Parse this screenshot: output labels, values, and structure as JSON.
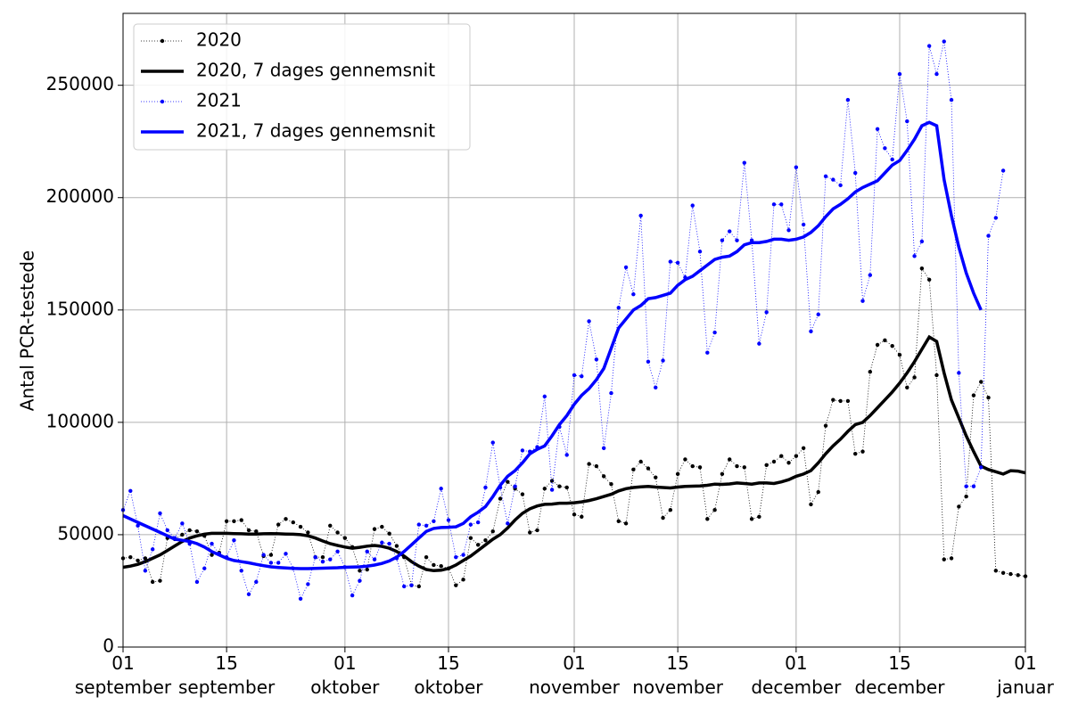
{
  "chart_data": {
    "type": "line",
    "y_label": "Antal PCR-testede",
    "x": [
      0,
      1,
      2,
      3,
      4,
      5,
      6,
      7,
      8,
      9,
      10,
      11,
      12,
      13,
      14,
      15,
      16,
      17,
      18,
      19,
      20,
      21,
      22,
      23,
      24,
      25,
      26,
      27,
      28,
      29,
      30,
      31,
      32,
      33,
      34,
      35,
      36,
      37,
      38,
      39,
      40,
      41,
      42,
      43,
      44,
      45,
      46,
      47,
      48,
      49,
      50,
      51,
      52,
      53,
      54,
      55,
      56,
      57,
      58,
      59,
      60,
      61,
      62,
      63,
      64,
      65,
      66,
      67,
      68,
      69,
      70,
      71,
      72,
      73,
      74,
      75,
      76,
      77,
      78,
      79,
      80,
      81,
      82,
      83,
      84,
      85,
      86,
      87,
      88,
      89,
      90,
      91,
      92,
      93,
      94,
      95,
      96,
      97,
      98,
      99,
      100,
      101,
      102,
      103,
      104,
      105,
      106,
      107,
      108,
      109,
      110,
      111,
      112,
      113,
      114,
      115,
      116,
      117,
      118,
      119,
      120,
      121,
      122
    ],
    "xlim": [
      0,
      122
    ],
    "xticks": [
      {
        "value": 0,
        "label": "01\nseptember"
      },
      {
        "value": 14,
        "label": "15\nseptember"
      },
      {
        "value": 30,
        "label": "01\noktober"
      },
      {
        "value": 44,
        "label": "15\noktober"
      },
      {
        "value": 61,
        "label": "01\nnovember"
      },
      {
        "value": 75,
        "label": "15\nnovember"
      },
      {
        "value": 91,
        "label": "01\ndecember"
      },
      {
        "value": 105,
        "label": "15\ndecember"
      },
      {
        "value": 122,
        "label": "01\njanuar"
      }
    ],
    "ylim": [
      0,
      282000
    ],
    "yticks": [
      0,
      50000,
      100000,
      150000,
      200000,
      250000
    ],
    "grid": true,
    "legend": "upper-left",
    "series": [
      {
        "name": "2020",
        "color": "#000000",
        "line_style": "dotted",
        "marker": true,
        "values": [
          39500,
          40000,
          38500,
          39500,
          29000,
          29500,
          48500,
          48000,
          50000,
          52000,
          51500,
          49500,
          41000,
          42000,
          56000,
          56000,
          56500,
          52000,
          51500,
          40500,
          41000,
          54500,
          57000,
          55500,
          53500,
          51000,
          40000,
          40000,
          54000,
          51000,
          48500,
          44500,
          34000,
          34500,
          52500,
          53500,
          50500,
          45000,
          40000,
          27500,
          27000,
          40000,
          36500,
          36000,
          35000,
          27500,
          30000,
          48500,
          45500,
          47500,
          51500,
          66000,
          73500,
          70500,
          68000,
          51000,
          52000,
          70500,
          74000,
          71500,
          71000,
          59000,
          58000,
          81500,
          80500,
          76000,
          72500,
          56000,
          55000,
          79000,
          82500,
          79500,
          75500,
          57500,
          61000,
          77000,
          83500,
          80500,
          80000,
          57000,
          61000,
          77000,
          83500,
          80500,
          80000,
          57000,
          58000,
          81000,
          82500,
          85000,
          82000,
          85000,
          88500,
          63500,
          69000,
          98500,
          110000,
          109500,
          109500,
          86000,
          87000,
          122500,
          134500,
          136500,
          134000,
          130000,
          115500,
          120000,
          168500,
          163500,
          121000,
          39000,
          39500,
          62500,
          67000,
          112000,
          118000,
          111000,
          34000,
          33000,
          32500,
          32000,
          31500
        ]
      },
      {
        "name": "2020, 7 dages gennemsnit",
        "color": "#000000",
        "line_style": "solid",
        "marker": false,
        "values": [
          35500,
          36000,
          36800,
          38000,
          39500,
          41000,
          43000,
          45000,
          47000,
          48500,
          49500,
          50200,
          50600,
          50600,
          50600,
          50500,
          50400,
          50300,
          50300,
          50400,
          50500,
          50400,
          50300,
          50200,
          50000,
          49500,
          48500,
          47200,
          46000,
          45200,
          44500,
          44000,
          44400,
          44900,
          45200,
          44800,
          44000,
          42500,
          40500,
          38000,
          36000,
          34500,
          34000,
          34200,
          35000,
          36500,
          38500,
          40500,
          43000,
          45500,
          48000,
          50000,
          53000,
          56500,
          59500,
          61500,
          62800,
          63500,
          63600,
          64000,
          64000,
          64200,
          64600,
          65200,
          66000,
          67000,
          68000,
          69500,
          70500,
          71000,
          71300,
          71500,
          71200,
          71000,
          70800,
          71200,
          71500,
          71600,
          71700,
          72000,
          72500,
          72400,
          72600,
          73000,
          72800,
          72500,
          73000,
          73000,
          72800,
          73500,
          74500,
          76000,
          77000,
          78500,
          82000,
          86000,
          89500,
          92500,
          96000,
          99000,
          100000,
          103000,
          106500,
          110000,
          113500,
          117500,
          122000,
          127000,
          132500,
          138000,
          136000,
          122000,
          110000,
          102000,
          94000,
          87000,
          80500,
          79000,
          78000,
          77000,
          78500,
          78300,
          77500
        ]
      },
      {
        "name": "2021",
        "color": "#0000ff",
        "line_style": "dotted",
        "marker": true,
        "values": [
          61000,
          69500,
          54000,
          34000,
          43500,
          59500,
          52000,
          48500,
          55000,
          46000,
          29000,
          35000,
          46000,
          41500,
          40000,
          47500,
          34000,
          23500,
          29000,
          41000,
          37500,
          37500,
          41500,
          35000,
          21500,
          28000,
          40000,
          38000,
          39000,
          42500,
          35500,
          23000,
          29500,
          42500,
          39000,
          46500,
          46000,
          39500,
          27000,
          27500,
          54500,
          54000,
          56000,
          70500,
          56500,
          40000,
          41000,
          54500,
          55500,
          71000,
          91000,
          71000,
          55000,
          71500,
          87500,
          87000,
          89000,
          111500,
          70000,
          98000,
          85500,
          121000,
          120500,
          145000,
          128000,
          88500,
          113000,
          151000,
          169000,
          157000,
          192000,
          127000,
          115500,
          127500,
          171500,
          171000,
          164500,
          196500,
          176000,
          131000,
          140000,
          181000,
          185000,
          181000,
          215500,
          181000,
          135000,
          149000,
          197000,
          197000,
          185500,
          213500,
          188000,
          140500,
          148000,
          209500,
          208000,
          205500,
          243500,
          211000,
          154000,
          165500,
          230500,
          222000,
          217000,
          255000,
          234000,
          174000,
          180500,
          267500,
          255000,
          269500,
          243500,
          122000,
          71500,
          71500,
          80000,
          183000,
          191000,
          212000,
          null,
          null,
          null
        ]
      },
      {
        "name": "2021, 7 dages gennemsnit",
        "color": "#0000ff",
        "line_style": "solid",
        "marker": false,
        "values": [
          58500,
          57000,
          55500,
          54000,
          52500,
          51000,
          49500,
          48000,
          47500,
          47000,
          46000,
          44500,
          42500,
          41000,
          39500,
          38500,
          38000,
          37500,
          36800,
          36200,
          35700,
          35400,
          35200,
          35000,
          34900,
          34900,
          35000,
          35100,
          35200,
          35300,
          35500,
          35600,
          35700,
          36000,
          36500,
          37200,
          38300,
          40000,
          42500,
          45500,
          48500,
          51500,
          52800,
          53200,
          53300,
          53500,
          55000,
          58000,
          60000,
          62500,
          67000,
          72000,
          76000,
          78500,
          82000,
          86000,
          88000,
          89500,
          94000,
          99000,
          103000,
          108000,
          112000,
          115000,
          119000,
          124000,
          133000,
          142000,
          146000,
          150000,
          152000,
          155000,
          155500,
          156500,
          157500,
          161000,
          163500,
          165000,
          167500,
          170000,
          172500,
          173500,
          174000,
          176000,
          179000,
          180000,
          180000,
          180500,
          181500,
          181500,
          181000,
          181500,
          182500,
          184500,
          187500,
          191500,
          195000,
          197000,
          199500,
          202500,
          204500,
          206000,
          207500,
          211000,
          214500,
          216500,
          221000,
          226000,
          232000,
          233500,
          232000,
          208000,
          192000,
          178000,
          166500,
          157500,
          150000,
          null,
          null,
          null,
          null,
          null,
          null
        ]
      }
    ]
  }
}
